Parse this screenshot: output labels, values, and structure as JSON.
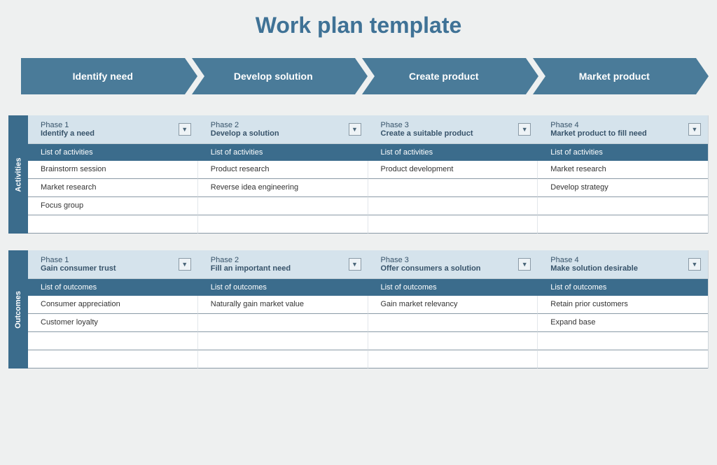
{
  "title": "Work plan template",
  "colors": {
    "background": "#eef0f0",
    "title": "#3f7296",
    "chevron": "#4a7b99",
    "side_label": "#3b6c8c",
    "phase_head_bg": "#d5e3ec",
    "list_header_bg": "#3b6c8c",
    "cell_border": "#8a9aa6"
  },
  "chevrons": [
    "Identify need",
    "Develop solution",
    "Create product",
    "Market product"
  ],
  "sections": [
    {
      "side": "Activities",
      "list_header": "List of activities",
      "row_count": 4,
      "phases": [
        {
          "num": "Phase 1",
          "title": "Identify a need",
          "items": [
            "Brainstorm session",
            "Market research",
            "Focus group",
            ""
          ]
        },
        {
          "num": "Phase 2",
          "title": "Develop a solution",
          "items": [
            "Product research",
            "Reverse idea engineering",
            "",
            ""
          ]
        },
        {
          "num": "Phase 3",
          "title": "Create a suitable product",
          "items": [
            "Product development",
            "",
            "",
            ""
          ]
        },
        {
          "num": "Phase 4",
          "title": "Market product to fill need",
          "items": [
            "Market research",
            "Develop strategy",
            "",
            ""
          ]
        }
      ]
    },
    {
      "side": "Outcomes",
      "list_header": "List of outcomes",
      "row_count": 4,
      "phases": [
        {
          "num": "Phase 1",
          "title": "Gain consumer trust",
          "items": [
            "Consumer appreciation",
            "Customer loyalty",
            "",
            ""
          ]
        },
        {
          "num": "Phase 2",
          "title": "Fill an important need",
          "items": [
            "Naturally gain market value",
            "",
            "",
            ""
          ]
        },
        {
          "num": "Phase 3",
          "title": "Offer consumers a solution",
          "items": [
            "Gain market relevancy",
            "",
            "",
            ""
          ]
        },
        {
          "num": "Phase 4",
          "title": "Make solution desirable",
          "items": [
            "Retain prior customers",
            "Expand base",
            "",
            ""
          ]
        }
      ]
    }
  ]
}
